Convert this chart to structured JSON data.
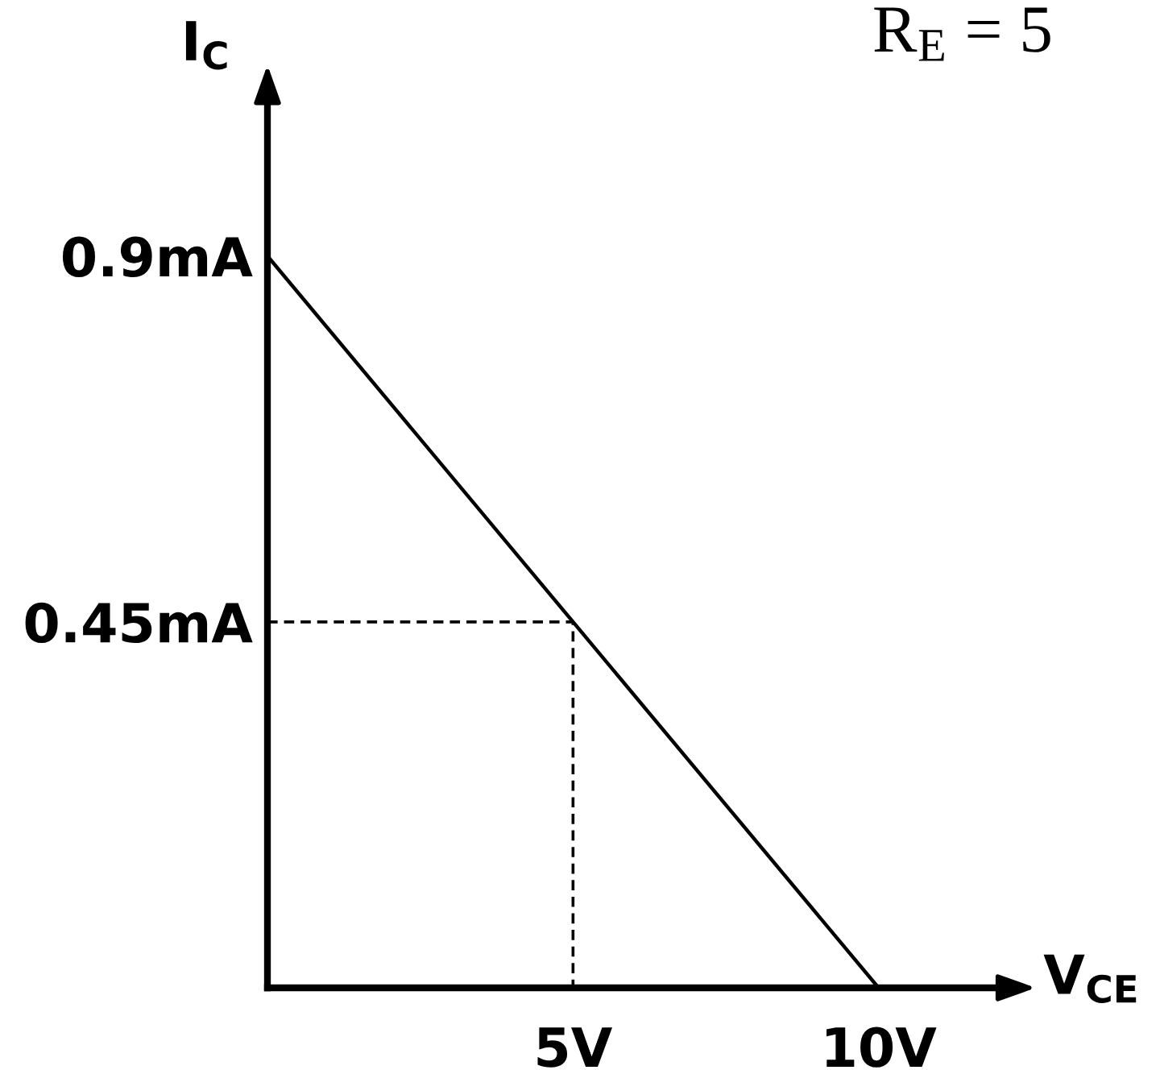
{
  "chart_data": {
    "type": "line",
    "annotations": [
      "R$_{E}$ = 5"
    ],
    "xlabel": "V$_{CE}$",
    "ylabel": "I$_{C}$",
    "xlim": [
      0,
      12.1
    ],
    "ylim": [
      0,
      1.082
    ],
    "xticks": [
      {
        "value": 5,
        "label": "5V"
      },
      {
        "value": 10,
        "label": "10V"
      }
    ],
    "yticks": [
      {
        "value": 0.45,
        "label": "0.45mA"
      },
      {
        "value": 0.9,
        "label": "0.9mA"
      }
    ],
    "line_style": "solid",
    "series": [
      {
        "color": "#000000",
        "x": [
          0,
          10
        ],
        "values": [
          0.9,
          0
        ]
      },
      {
        "color": "#000000",
        "x": [
          0,
          5,
          5
        ],
        "values": [
          0.45,
          0.45,
          0
        ],
        "line_style": "dashed"
      }
    ]
  }
}
